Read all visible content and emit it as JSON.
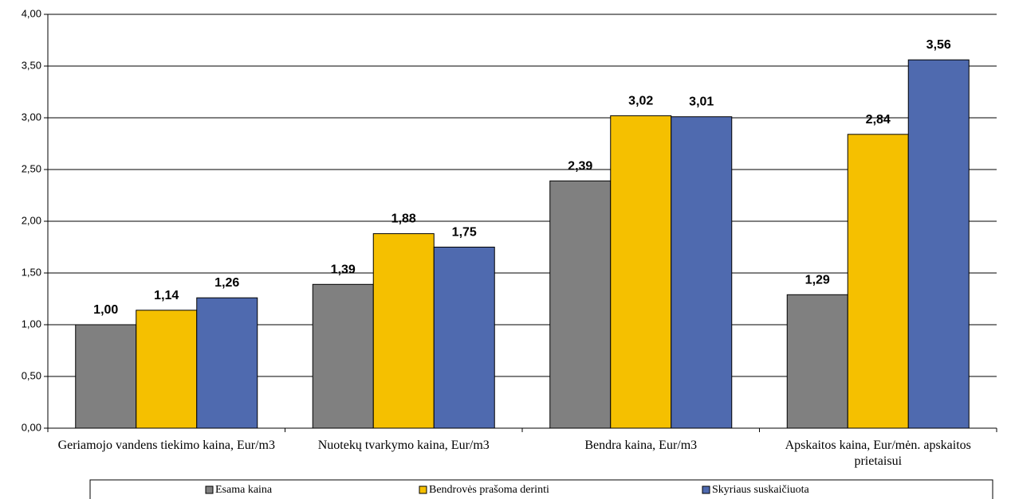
{
  "chart_data": {
    "type": "bar",
    "categories": [
      "Geriamojo vandens tiekimo kaina, Eur/m3",
      "Nuotekų tvarkymo kaina, Eur/m3",
      "Bendra kaina, Eur/m3",
      "Apskaitos kaina, Eur/mėn. apskaitos prietaisui"
    ],
    "series": [
      {
        "name": "Esama kaina",
        "color": "#808080",
        "values": [
          1.0,
          1.39,
          2.39,
          1.29
        ],
        "value_labels": [
          "1,00",
          "1,39",
          "2,39",
          "1,29"
        ]
      },
      {
        "name": "Bendrovės prašoma derinti",
        "color": "#f5c000",
        "values": [
          1.14,
          1.88,
          3.02,
          2.84
        ],
        "value_labels": [
          "1,14",
          "1,88",
          "3,02",
          "2,84"
        ]
      },
      {
        "name": "Skyriaus suskaičiuota",
        "color": "#4f6aaf",
        "values": [
          1.26,
          1.75,
          3.01,
          3.56
        ],
        "value_labels": [
          "1,26",
          "1,75",
          "3,01",
          "3,56"
        ]
      }
    ],
    "ylim": [
      0,
      4
    ],
    "yticks": [
      {
        "value": 0,
        "label": "0,00"
      },
      {
        "value": 0.5,
        "label": "0,50"
      },
      {
        "value": 1,
        "label": "1,00"
      },
      {
        "value": 1.5,
        "label": "1,50"
      },
      {
        "value": 2,
        "label": "2,00"
      },
      {
        "value": 2.5,
        "label": "2,50"
      },
      {
        "value": 3,
        "label": "3,00"
      },
      {
        "value": 3.5,
        "label": "3,50"
      },
      {
        "value": 4,
        "label": "4,00"
      }
    ],
    "grid": true,
    "legend": "bottom"
  }
}
